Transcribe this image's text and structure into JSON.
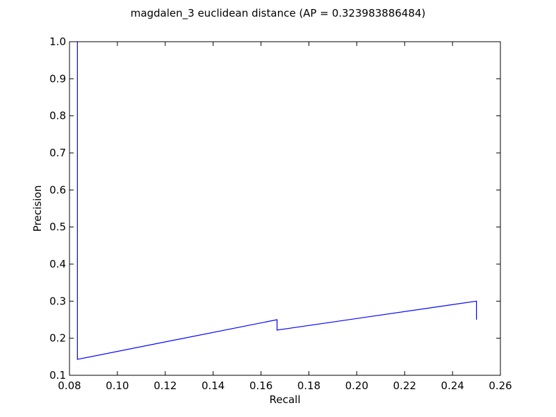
{
  "chart_data": {
    "type": "line",
    "title": "magdalen_3 euclidean distance  (AP = 0.323983886484)",
    "xlabel": "Recall",
    "ylabel": "Precision",
    "xlim": [
      0.08,
      0.26
    ],
    "ylim": [
      0.1,
      1.0
    ],
    "grid": false,
    "line_color": "#0000ff",
    "xticks": [
      "0.08",
      "0.10",
      "0.12",
      "0.14",
      "0.16",
      "0.18",
      "0.20",
      "0.22",
      "0.24",
      "0.26"
    ],
    "yticks": [
      "0.1",
      "0.2",
      "0.3",
      "0.4",
      "0.5",
      "0.6",
      "0.7",
      "0.8",
      "0.9",
      "1.0"
    ],
    "series": [
      {
        "x": [
          0.0833,
          0.0833,
          0.0833,
          0.1667,
          0.1667,
          0.25,
          0.25
        ],
        "y": [
          1.0,
          0.9,
          0.143,
          0.25,
          0.222,
          0.3,
          0.25
        ]
      }
    ]
  }
}
